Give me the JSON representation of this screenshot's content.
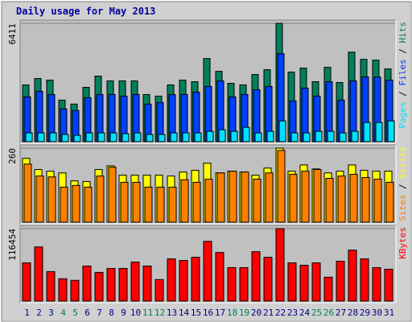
{
  "title": "Daily usage for May 2013",
  "chart_data": [
    {
      "type": "bar",
      "ylim": [
        0,
        6411
      ],
      "yticks": [
        6411
      ],
      "legend_separator": " / ",
      "series": [
        {
          "name": "Hits",
          "color": "#00805c",
          "values": [
            3076,
            3422,
            3336,
            2253,
            2036,
            2946,
            3552,
            3292,
            3292,
            3292,
            2556,
            2469,
            3076,
            3336,
            3249,
            4505,
            3812,
            3162,
            3076,
            3639,
            3899,
            6411,
            3769,
            3985,
            3249,
            4029,
            3206,
            4852,
            4462,
            4419,
            3942
          ]
        },
        {
          "name": "Files",
          "color": "#0040ff",
          "values": [
            2426,
            2729,
            2556,
            1776,
            1689,
            2383,
            2556,
            2556,
            2469,
            2556,
            2036,
            2123,
            2556,
            2556,
            2686,
            2989,
            3292,
            2426,
            2556,
            2816,
            2989,
            4765,
            2209,
            2902,
            2469,
            3249,
            2253,
            3292,
            3509,
            3509,
            3336
          ]
        },
        {
          "name": "Pages",
          "color": "#00e0ff",
          "values": [
            476,
            476,
            476,
            390,
            347,
            476,
            476,
            476,
            433,
            476,
            390,
            390,
            476,
            476,
            476,
            563,
            650,
            563,
            780,
            476,
            563,
            1126,
            476,
            476,
            563,
            563,
            476,
            563,
            1040,
            1040,
            1126
          ]
        }
      ]
    },
    {
      "type": "bar",
      "ylim": [
        0,
        260
      ],
      "yticks": [
        260
      ],
      "legend_separator": " / ",
      "series": [
        {
          "name": "Visits",
          "color": "#ffff00",
          "values": [
            224,
            185,
            179,
            173,
            145,
            143,
            185,
            198,
            165,
            165,
            165,
            165,
            162,
            176,
            182,
            207,
            173,
            179,
            176,
            165,
            190,
            260,
            179,
            201,
            187,
            173,
            179,
            201,
            182,
            179,
            179
          ]
        },
        {
          "name": "Sites",
          "color": "#ff8000",
          "values": [
            204,
            162,
            159,
            123,
            129,
            123,
            162,
            193,
            140,
            140,
            123,
            123,
            123,
            149,
            140,
            151,
            173,
            179,
            176,
            151,
            173,
            252,
            168,
            179,
            185,
            154,
            162,
            168,
            157,
            151,
            140
          ]
        }
      ]
    },
    {
      "type": "bar",
      "ylim": [
        0,
        116454
      ],
      "yticks": [
        116454
      ],
      "categories": [
        "1",
        "2",
        "3",
        "4",
        "5",
        "6",
        "7",
        "8",
        "9",
        "10",
        "11",
        "12",
        "13",
        "14",
        "15",
        "16",
        "17",
        "18",
        "19",
        "20",
        "21",
        "22",
        "23",
        "24",
        "25",
        "26",
        "27",
        "28",
        "29",
        "30",
        "31"
      ],
      "category_color": "#000080",
      "highlight_categories": [
        "4",
        "5",
        "11",
        "12",
        "18",
        "19",
        "25",
        "26"
      ],
      "highlight_color": "#00805c",
      "series": [
        {
          "name": "KBytes",
          "color": "#ff0000",
          "values": [
            61426,
            87024,
            47350,
            35833,
            33273,
            56309,
            46070,
            52469,
            52469,
            62706,
            56309,
            34553,
            67826,
            65267,
            70386,
            95980,
            78064,
            53749,
            53749,
            79343,
            70386,
            116454,
            61426,
            57588,
            61426,
            38392,
            63986,
            81903,
            67826,
            53749,
            51189
          ]
        }
      ]
    }
  ]
}
